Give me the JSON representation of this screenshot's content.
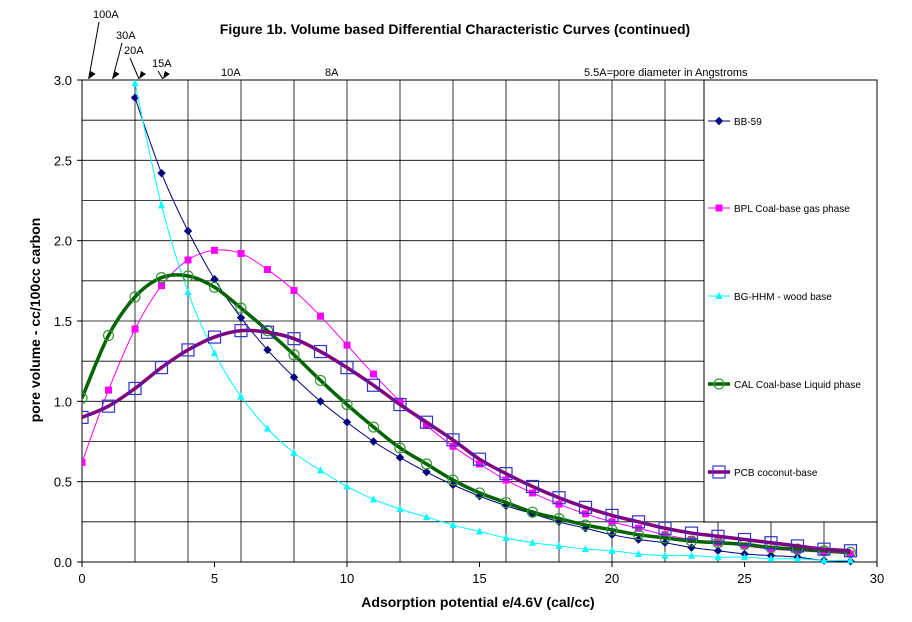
{
  "chart_data": {
    "type": "line",
    "title": "Figure 1b. Volume based Differential Characteristic Curves (continued)",
    "xlabel": "Adsorption potential e/4.6V (cal/cc)",
    "ylabel": "pore volume - cc/100cc carbon",
    "xlim": [
      0,
      30
    ],
    "ylim": [
      0,
      3.0
    ],
    "x_ticks": [
      "0",
      "5",
      "10",
      "15",
      "20",
      "25",
      "30"
    ],
    "y_ticks": [
      "0.0",
      "0.5",
      "1.0",
      "1.5",
      "2.0",
      "2.5",
      "3.0"
    ],
    "grid": true,
    "legend_position": "right",
    "annotations": {
      "pore_labels": [
        {
          "text": "100A",
          "x": 0.1
        },
        {
          "text": "30A",
          "x": 1.0
        },
        {
          "text": "20A",
          "x": 2.0
        },
        {
          "text": "15A",
          "x": 2.9
        },
        {
          "text": "10A",
          "x": 5.6
        },
        {
          "text": "8A",
          "x": 9.5
        }
      ],
      "note": "5.5A=pore diameter in Angstroms"
    },
    "series": [
      {
        "name": "BB-59",
        "color": "#000080",
        "marker": "diamond",
        "line_width": 1,
        "x": [
          2,
          3,
          4,
          5,
          6,
          7,
          8,
          9,
          10,
          11,
          12,
          13,
          14,
          15,
          16,
          17,
          18,
          19,
          20,
          21,
          22,
          23,
          24,
          25,
          26,
          27,
          28,
          29
        ],
        "y": [
          2.89,
          2.42,
          2.06,
          1.76,
          1.52,
          1.32,
          1.15,
          1.0,
          0.87,
          0.75,
          0.65,
          0.56,
          0.48,
          0.41,
          0.35,
          0.3,
          0.25,
          0.21,
          0.17,
          0.14,
          0.12,
          0.09,
          0.07,
          0.05,
          0.04,
          0.03,
          0.01,
          0.005
        ]
      },
      {
        "name": "BPL Coal-base gas phase",
        "color": "#ff00ff",
        "marker": "square",
        "line_width": 1,
        "x": [
          0,
          1,
          2,
          3,
          4,
          5,
          6,
          7,
          8,
          9,
          10,
          11,
          12,
          13,
          14,
          15,
          16,
          17,
          18,
          19,
          20,
          21,
          22,
          23,
          24,
          25,
          26,
          27,
          28,
          29
        ],
        "y": [
          0.62,
          1.07,
          1.45,
          1.72,
          1.88,
          1.94,
          1.92,
          1.82,
          1.69,
          1.53,
          1.35,
          1.17,
          1.0,
          0.85,
          0.72,
          0.61,
          0.51,
          0.43,
          0.36,
          0.3,
          0.25,
          0.21,
          0.17,
          0.14,
          0.12,
          0.1,
          0.08,
          0.07,
          0.06,
          0.05
        ]
      },
      {
        "name": "BG-HHM - wood base",
        "color": "#00ffff",
        "marker": "triangle",
        "line_width": 1,
        "x": [
          2,
          3,
          4,
          5,
          6,
          7,
          8,
          9,
          10,
          11,
          12,
          13,
          14,
          15,
          16,
          17,
          18,
          19,
          20,
          21,
          22,
          23,
          24,
          25,
          26,
          27,
          28,
          29
        ],
        "y": [
          2.98,
          2.22,
          1.68,
          1.3,
          1.03,
          0.83,
          0.68,
          0.57,
          0.47,
          0.39,
          0.33,
          0.28,
          0.23,
          0.19,
          0.15,
          0.12,
          0.1,
          0.08,
          0.07,
          0.05,
          0.04,
          0.04,
          0.03,
          0.03,
          0.02,
          0.02,
          0.01,
          0.01
        ]
      },
      {
        "name": "CAL Coal-base Liquid phase",
        "color": "#006400",
        "marker": "circle",
        "line_width": 3.5,
        "x": [
          0,
          1,
          2,
          3,
          4,
          5,
          6,
          7,
          8,
          9,
          10,
          11,
          12,
          13,
          14,
          15,
          16,
          17,
          18,
          19,
          20,
          21,
          22,
          23,
          24,
          25,
          26,
          27,
          28,
          29
        ],
        "y": [
          1.02,
          1.41,
          1.65,
          1.77,
          1.78,
          1.71,
          1.58,
          1.44,
          1.29,
          1.13,
          0.98,
          0.84,
          0.71,
          0.61,
          0.51,
          0.43,
          0.37,
          0.31,
          0.27,
          0.23,
          0.2,
          0.17,
          0.15,
          0.13,
          0.12,
          0.11,
          0.09,
          0.08,
          0.07,
          0.06
        ]
      },
      {
        "name": "PCB coconut-base",
        "color": "#800080",
        "marker": "open-square",
        "line_width": 3.5,
        "x": [
          0,
          1,
          2,
          3,
          4,
          5,
          6,
          7,
          8,
          9,
          10,
          11,
          12,
          13,
          14,
          15,
          16,
          17,
          18,
          19,
          20,
          21,
          22,
          23,
          24,
          25,
          26,
          27,
          28,
          29
        ],
        "y": [
          0.9,
          0.97,
          1.08,
          1.21,
          1.32,
          1.4,
          1.44,
          1.43,
          1.39,
          1.31,
          1.21,
          1.1,
          0.98,
          0.87,
          0.76,
          0.64,
          0.55,
          0.47,
          0.4,
          0.34,
          0.29,
          0.25,
          0.21,
          0.18,
          0.16,
          0.14,
          0.12,
          0.1,
          0.08,
          0.07
        ]
      }
    ]
  }
}
